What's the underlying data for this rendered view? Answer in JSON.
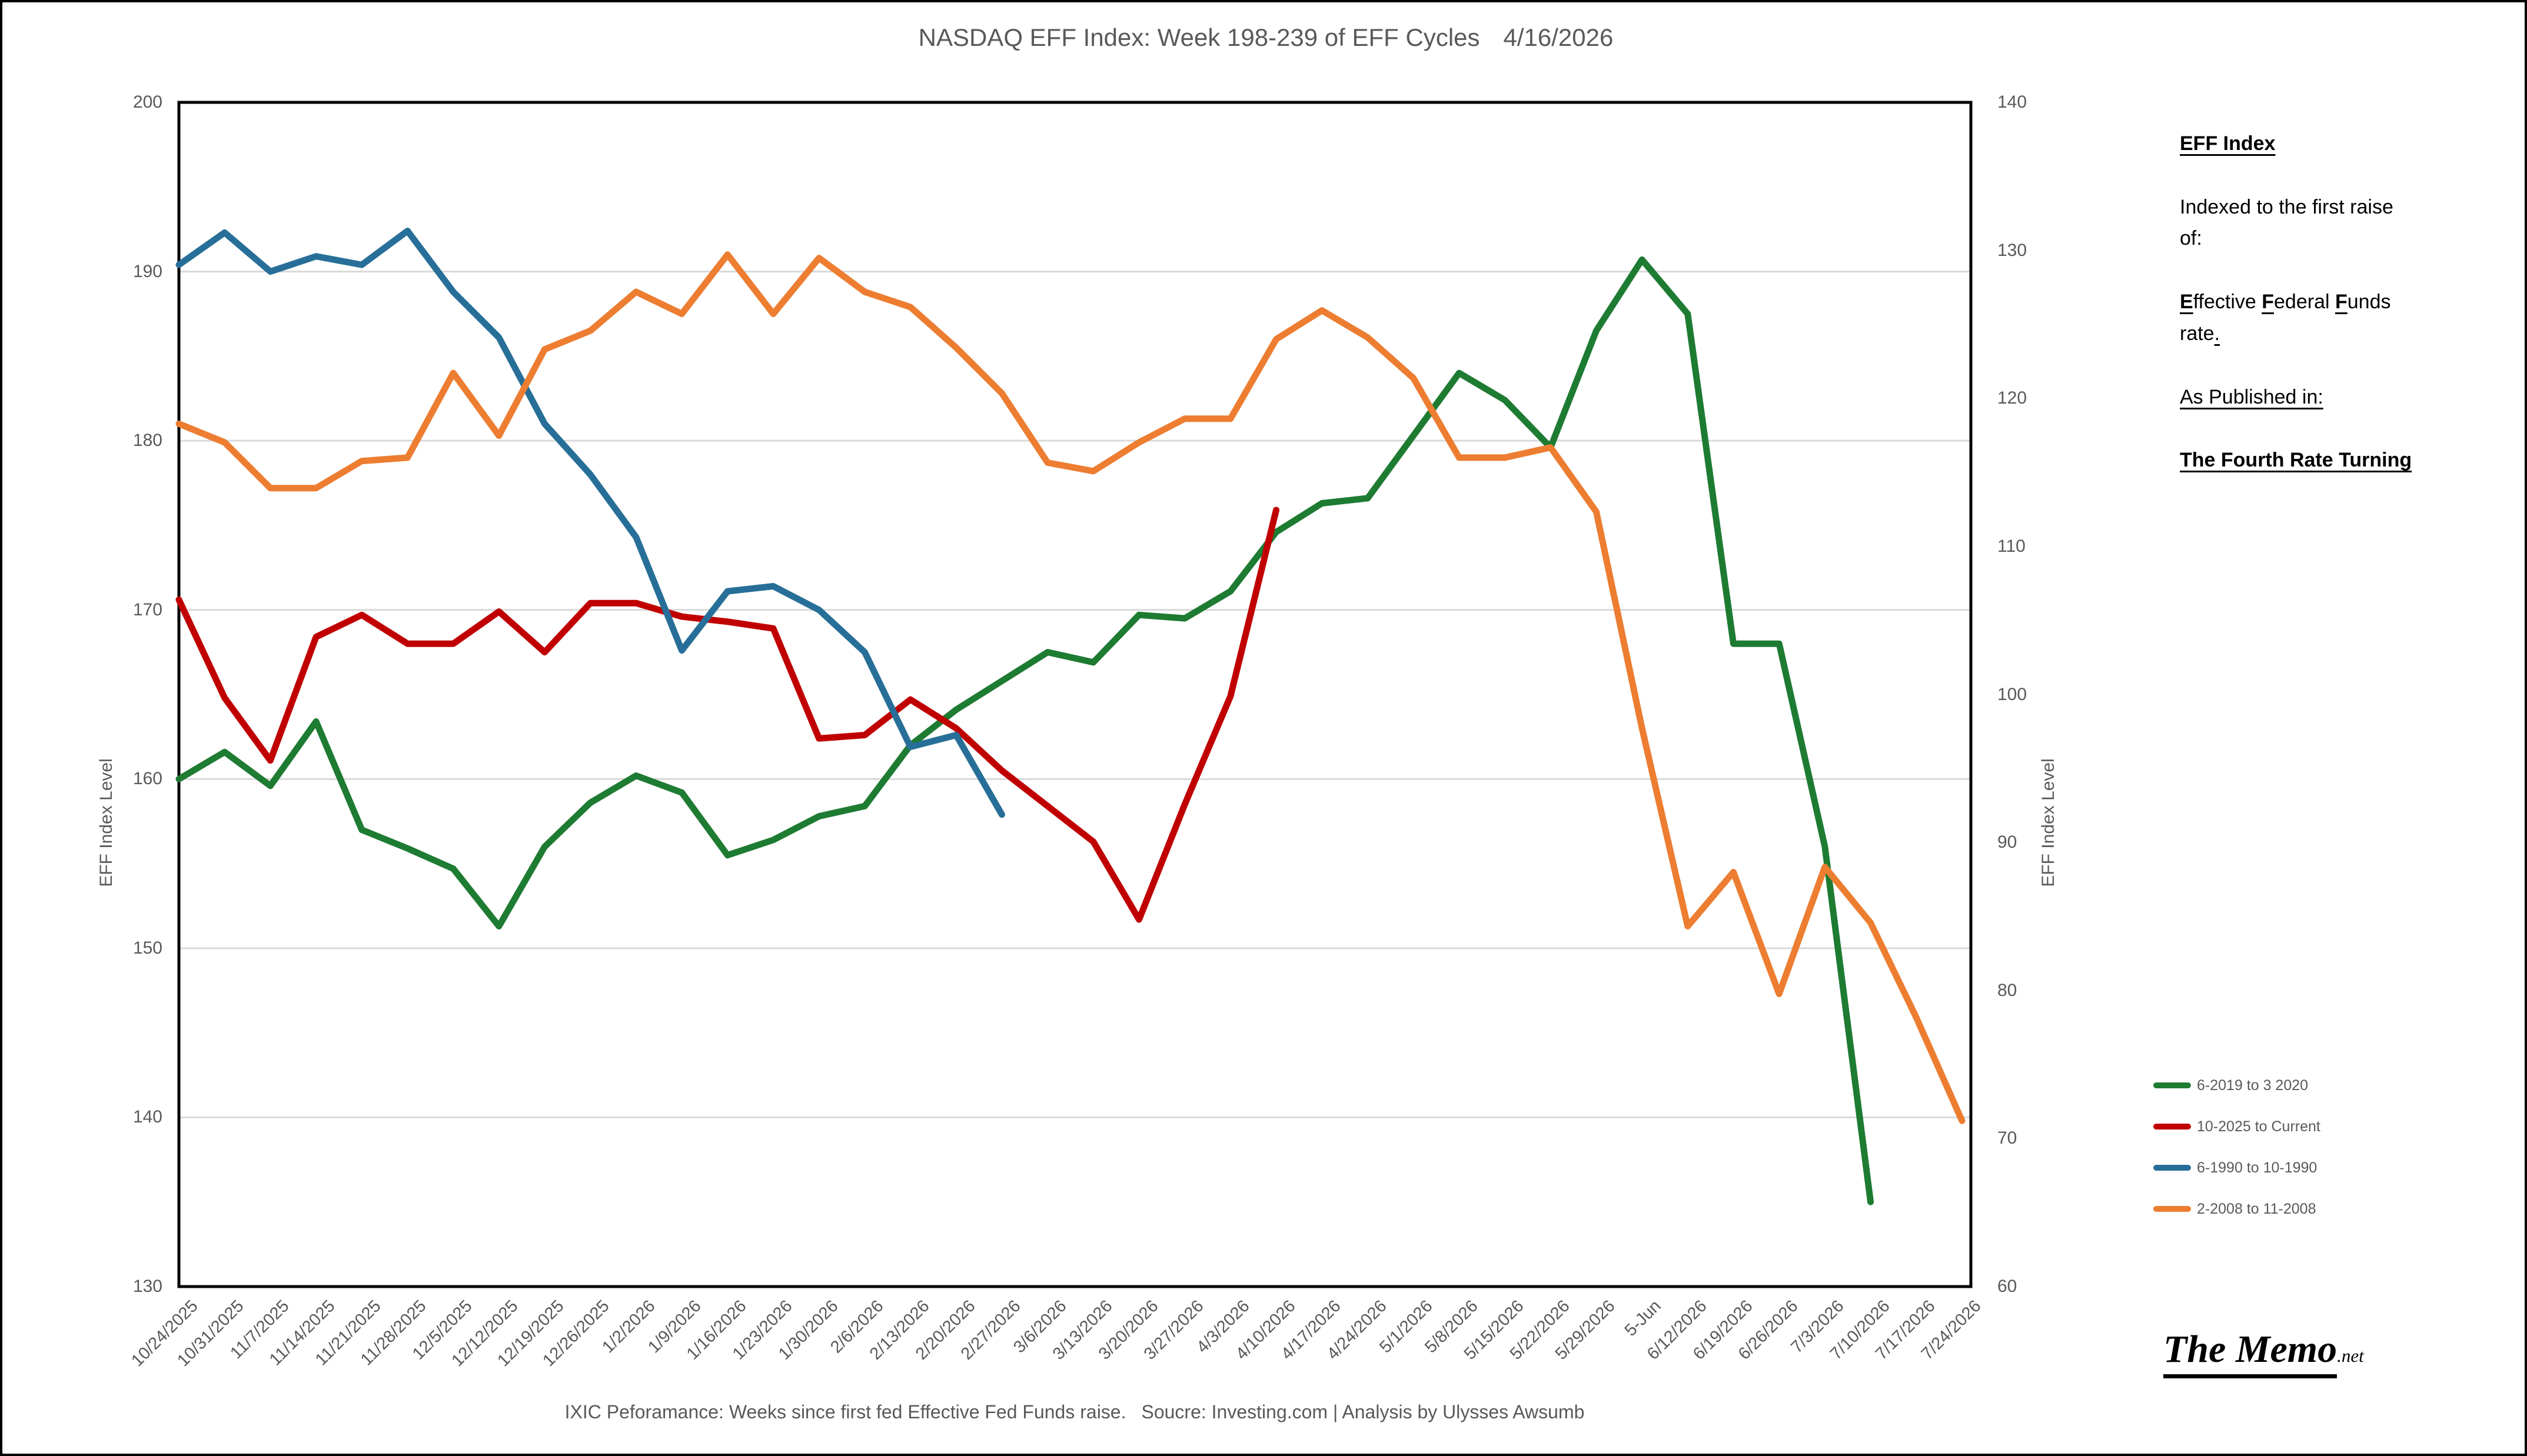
{
  "title": {
    "text": "NASDAQ EFF Index: Week 198-239 of EFF Cycles",
    "date": "4/16/2026"
  },
  "footer": {
    "text": "IXIC Peforamance: Weeks since first fed Effective Fed Funds raise.",
    "source": "Soucre: Investing.com | Analysis by Ulysses Awsumb"
  },
  "logo": {
    "main": "The Memo",
    "suffix": ".net"
  },
  "side_panel": {
    "paragraphs": [
      {
        "parts": [
          {
            "t": "EFF Index",
            "b": true,
            "u": true
          }
        ]
      },
      {
        "parts": [
          {
            "t": "Indexed to the first raise of:"
          }
        ]
      },
      {
        "parts": [
          {
            "t": "E",
            "b": true,
            "u": true
          },
          {
            "t": "ffective "
          },
          {
            "t": "F",
            "b": true,
            "u": true
          },
          {
            "t": "ederal "
          },
          {
            "t": "F",
            "b": true,
            "u": true
          },
          {
            "t": "unds rate"
          },
          {
            "t": ".",
            "u": true
          }
        ]
      },
      {
        "parts": [
          {
            "t": "As Published in:",
            "u": true
          }
        ]
      },
      {
        "parts": [
          {
            "t": "The Fourth Rate Turning",
            "b": true,
            "u": true
          }
        ]
      }
    ]
  },
  "colors": {
    "text_gray": "#595959",
    "gridline": "#D9D9D9",
    "plot_border": "#000000",
    "green": "#1E7B32",
    "red": "#C00000",
    "blue": "#276F98",
    "orange": "#ED7D31"
  },
  "chart_data": {
    "type": "line",
    "title": "NASDAQ EFF Index: Week 198-239 of EFF Cycles  4/16/2026",
    "grid": "horizontal",
    "legend_position": "right",
    "left_axis": {
      "label": "EFF Index Level",
      "min": 130,
      "max": 200,
      "tick_step": 10,
      "ticks": [
        200,
        190,
        180,
        170,
        160,
        150,
        140,
        130
      ]
    },
    "right_axis": {
      "label": "EFF Index Level",
      "min": 60,
      "max": 140,
      "tick_step": 10,
      "ticks": [
        140,
        130,
        120,
        110,
        100,
        90,
        80,
        70,
        60
      ]
    },
    "categories": [
      "10/24/2025",
      "10/31/2025",
      "11/7/2025",
      "11/14/2025",
      "11/21/2025",
      "11/28/2025",
      "12/5/2025",
      "12/12/2025",
      "12/19/2025",
      "12/26/2025",
      "1/2/2026",
      "1/9/2026",
      "1/16/2026",
      "1/23/2026",
      "1/30/2026",
      "2/6/2026",
      "2/13/2026",
      "2/20/2026",
      "2/27/2026",
      "3/6/2026",
      "3/13/2026",
      "3/20/2026",
      "3/27/2026",
      "4/3/2026",
      "4/10/2026",
      "4/17/2026",
      "4/24/2026",
      "5/1/2026",
      "5/8/2026",
      "5/15/2026",
      "5/22/2026",
      "5/29/2026",
      "5-Jun",
      "6/12/2026",
      "6/19/2026",
      "6/26/2026",
      "7/3/2026",
      "7/10/2026",
      "7/17/2026",
      "7/24/2026"
    ],
    "series": [
      {
        "name": "6-2019 to 3 2020",
        "color_key": "green",
        "values": [
          160.0,
          161.6,
          159.6,
          163.4,
          157.0,
          155.9,
          154.7,
          151.3,
          156.0,
          158.6,
          160.2,
          159.2,
          155.5,
          156.4,
          157.8,
          158.4,
          162.0,
          164.1,
          165.8,
          167.5,
          166.9,
          169.7,
          169.5,
          171.1,
          174.6,
          176.3,
          176.6,
          180.3,
          184.0,
          182.4,
          179.6,
          186.5,
          190.7,
          187.5,
          168.0,
          168.0,
          156.0,
          135.0,
          null,
          null
        ]
      },
      {
        "name": "10-2025 to Current",
        "color_key": "red",
        "values": [
          170.6,
          164.8,
          161.1,
          168.4,
          169.7,
          168.0,
          168.0,
          169.9,
          167.5,
          170.4,
          170.4,
          169.6,
          169.3,
          168.9,
          162.4,
          162.6,
          164.7,
          163.0,
          160.5,
          158.4,
          156.3,
          151.7,
          158.5,
          164.9,
          175.9,
          null,
          null,
          null,
          null,
          null,
          null,
          null,
          null,
          null,
          null,
          null,
          null,
          null,
          null,
          null
        ]
      },
      {
        "name": "6-1990 to 10-1990",
        "color_key": "blue",
        "values": [
          190.4,
          192.3,
          190.0,
          190.9,
          190.4,
          192.4,
          188.8,
          186.1,
          181.0,
          178.0,
          174.3,
          167.6,
          171.1,
          171.4,
          170.0,
          167.5,
          161.9,
          162.6,
          157.9,
          null,
          null,
          null,
          null,
          null,
          null,
          null,
          null,
          null,
          null,
          null,
          null,
          null,
          null,
          null,
          null,
          null,
          null,
          null,
          null,
          null
        ]
      },
      {
        "name": "2-2008 to 11-2008",
        "color_key": "orange",
        "values": [
          181.0,
          179.9,
          177.2,
          177.2,
          178.8,
          179.0,
          184.0,
          180.3,
          185.4,
          186.5,
          188.8,
          187.5,
          191.0,
          187.5,
          190.8,
          188.8,
          187.9,
          185.5,
          182.8,
          178.7,
          178.2,
          179.9,
          181.3,
          181.3,
          186.0,
          187.7,
          186.1,
          183.7,
          179.0,
          179.0,
          179.6,
          175.8,
          163.0,
          151.3,
          154.5,
          147.3,
          154.8,
          151.5,
          145.9,
          139.8
        ]
      }
    ]
  }
}
